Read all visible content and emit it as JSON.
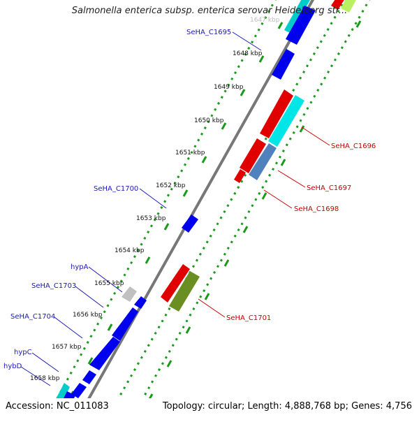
{
  "title": "Salmonella enterica subsp. enterica serovar Heidelberg str...",
  "footer": {
    "accession": "Accession: NC_011083",
    "summary": "Topology: circular; Length: 4,888,768 bp; Genes: 4,756"
  },
  "ticks": [
    "1647 kbp",
    "1648 kbp",
    "1649 kbp",
    "1650 kbp",
    "1651 kbp",
    "1652 kbp",
    "1653 kbp",
    "1654 kbp",
    "1655 kbp",
    "1656 kbp",
    "1657 kbp",
    "1658 kbp"
  ],
  "left_labels": [
    "SeHA_C1695",
    "SeHA_C1700",
    "hypA",
    "SeHA_C1703",
    "SeHA_C1704",
    "hypC",
    "hybD"
  ],
  "right_labels": [
    "SeHA_C1696",
    "SeHA_C1697",
    "SeHA_C1698",
    "SeHA_C1701"
  ],
  "colors": {
    "blue": "#0000ee",
    "cyan": "#00e5e5",
    "red": "#e00000",
    "steelblue": "#4f81bd",
    "olive": "#6b8e23",
    "grey": "#c0c0c0",
    "backbone": "#777777",
    "ring_dots": "#1a9a1a",
    "left_label": "#1a1ab4",
    "right_label": "#cc0000"
  }
}
